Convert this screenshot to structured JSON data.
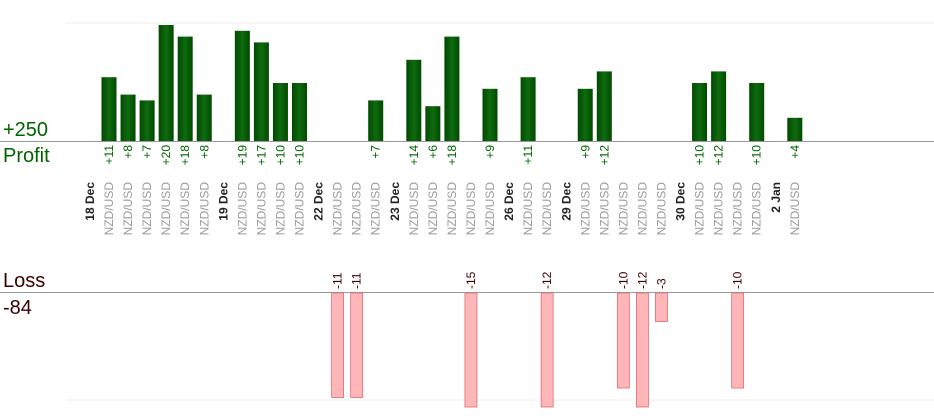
{
  "summary": {
    "profit_total": "+250",
    "profit_label": "Profit",
    "loss_label": "Loss",
    "loss_total": "-84"
  },
  "colors": {
    "profit_bar": "#0f6b0f",
    "profit_bar_dark": "#004a00",
    "profit_text": "#006400",
    "loss_bar": "#ffb6b9",
    "loss_bar_border": "#e06a72",
    "loss_text": "#3a0000",
    "pair_text": "#9a9a9a",
    "date_text": "#222222",
    "axis": "#999999",
    "grid": "#eeeeee"
  },
  "chart_data": {
    "type": "bar",
    "pair_label": "NZD/USD",
    "date_groups": [
      {
        "date": "18 Dec",
        "trades": [
          11,
          8,
          7,
          20,
          18,
          8
        ]
      },
      {
        "date": "19 Dec",
        "trades": [
          19,
          17,
          10,
          10
        ]
      },
      {
        "date": "22 Dec",
        "trades": [
          -11,
          -11,
          7
        ]
      },
      {
        "date": "23 Dec",
        "trades": [
          14,
          6,
          18,
          -15,
          9
        ]
      },
      {
        "date": "26 Dec",
        "trades": [
          11,
          -12
        ]
      },
      {
        "date": "29 Dec",
        "trades": [
          9,
          12,
          -10,
          -12,
          -3
        ]
      },
      {
        "date": "30 Dec",
        "trades": [
          10,
          12,
          -10,
          10
        ]
      },
      {
        "date": "2 Jan",
        "trades": [
          4
        ]
      }
    ]
  }
}
